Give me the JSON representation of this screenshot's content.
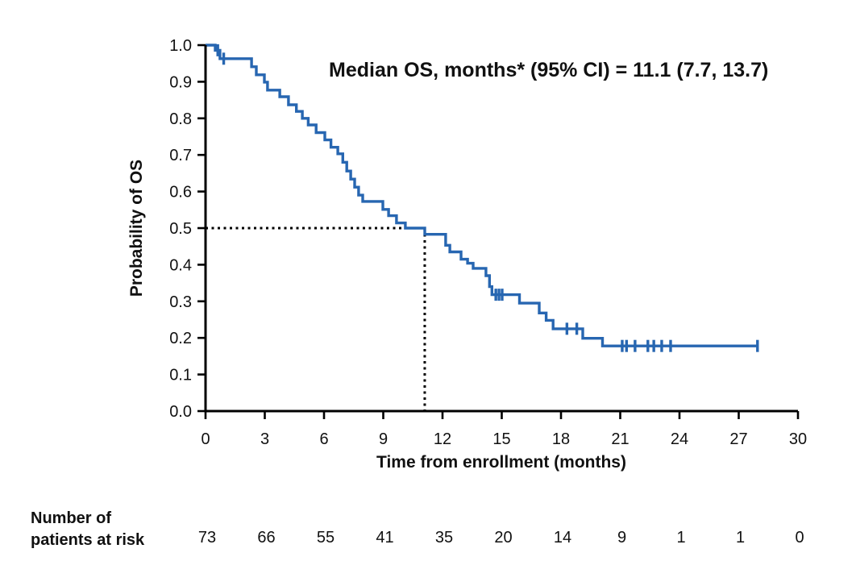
{
  "figure": {
    "background_color": "#ffffff",
    "axis_color": "#000000",
    "text_color": "#111111"
  },
  "chart_data": {
    "type": "line",
    "subtype": "kaplan-meier-step",
    "title": "",
    "xlabel": "Time from enrollment (months)",
    "ylabel": "Probability of OS",
    "xlim": [
      0,
      30
    ],
    "ylim": [
      0,
      1
    ],
    "xtick_values": [
      0,
      3,
      6,
      9,
      12,
      15,
      18,
      21,
      24,
      27,
      30
    ],
    "xtick_labels": [
      "0",
      "3",
      "6",
      "9",
      "12",
      "15",
      "18",
      "21",
      "24",
      "27",
      "30"
    ],
    "ytick_values": [
      0.0,
      0.1,
      0.2,
      0.3,
      0.4,
      0.5,
      0.6,
      0.7,
      0.8,
      0.9,
      1.0
    ],
    "ytick_labels": [
      "0.0",
      "0.1",
      "0.2",
      "0.3",
      "0.4",
      "0.5",
      "0.6",
      "0.7",
      "0.8",
      "0.9",
      "1.0"
    ],
    "grid": false,
    "legend": "none",
    "line_color": "#2766b1",
    "reference_line_color": "#000000",
    "median": {
      "label": "Median OS, months* (95% CI) = 11.1 (7.7, 13.7)",
      "time_months": 11.1,
      "probability": 0.5,
      "ci_low": 7.7,
      "ci_high": 13.7
    },
    "series": [
      {
        "name": "Overall survival",
        "steps": [
          [
            0,
            1.0
          ],
          [
            0.49,
            0.986
          ],
          [
            0.73,
            0.963
          ],
          [
            2.33,
            0.941
          ],
          [
            2.57,
            0.919
          ],
          [
            2.98,
            0.899
          ],
          [
            3.14,
            0.877
          ],
          [
            3.76,
            0.859
          ],
          [
            4.2,
            0.837
          ],
          [
            4.6,
            0.819
          ],
          [
            4.9,
            0.8
          ],
          [
            5.2,
            0.782
          ],
          [
            5.6,
            0.761
          ],
          [
            6.04,
            0.741
          ],
          [
            6.35,
            0.721
          ],
          [
            6.7,
            0.703
          ],
          [
            6.95,
            0.68
          ],
          [
            7.15,
            0.656
          ],
          [
            7.35,
            0.634
          ],
          [
            7.55,
            0.612
          ],
          [
            7.75,
            0.59
          ],
          [
            7.96,
            0.573
          ],
          [
            8.98,
            0.551
          ],
          [
            9.27,
            0.534
          ],
          [
            9.67,
            0.514
          ],
          [
            10.12,
            0.5
          ],
          [
            11.1,
            0.483
          ],
          [
            12.16,
            0.453
          ],
          [
            12.37,
            0.435
          ],
          [
            12.94,
            0.415
          ],
          [
            13.27,
            0.404
          ],
          [
            13.55,
            0.39
          ],
          [
            14.2,
            0.37
          ],
          [
            14.38,
            0.34
          ],
          [
            14.5,
            0.318
          ],
          [
            15.9,
            0.295
          ],
          [
            16.9,
            0.268
          ],
          [
            17.25,
            0.248
          ],
          [
            17.6,
            0.225
          ],
          [
            19.1,
            0.199
          ],
          [
            20.1,
            0.178
          ],
          [
            28.0,
            0.178
          ]
        ],
        "censor_marks": [
          [
            0.62,
            0.986
          ],
          [
            0.92,
            0.963
          ],
          [
            14.7,
            0.318
          ],
          [
            14.86,
            0.318
          ],
          [
            15.02,
            0.318
          ],
          [
            18.3,
            0.225
          ],
          [
            18.8,
            0.225
          ],
          [
            21.1,
            0.178
          ],
          [
            21.32,
            0.178
          ],
          [
            21.75,
            0.178
          ],
          [
            22.4,
            0.178
          ],
          [
            22.7,
            0.178
          ],
          [
            23.1,
            0.178
          ],
          [
            23.55,
            0.178
          ],
          [
            27.95,
            0.178
          ]
        ]
      }
    ]
  },
  "risk_table": {
    "label_line1": "Number of",
    "label_line2": "patients at risk",
    "times": [
      0,
      3,
      6,
      9,
      12,
      15,
      18,
      21,
      24,
      27,
      30
    ],
    "values": [
      "73",
      "66",
      "55",
      "41",
      "35",
      "20",
      "14",
      "9",
      "1",
      "1",
      "0"
    ]
  }
}
